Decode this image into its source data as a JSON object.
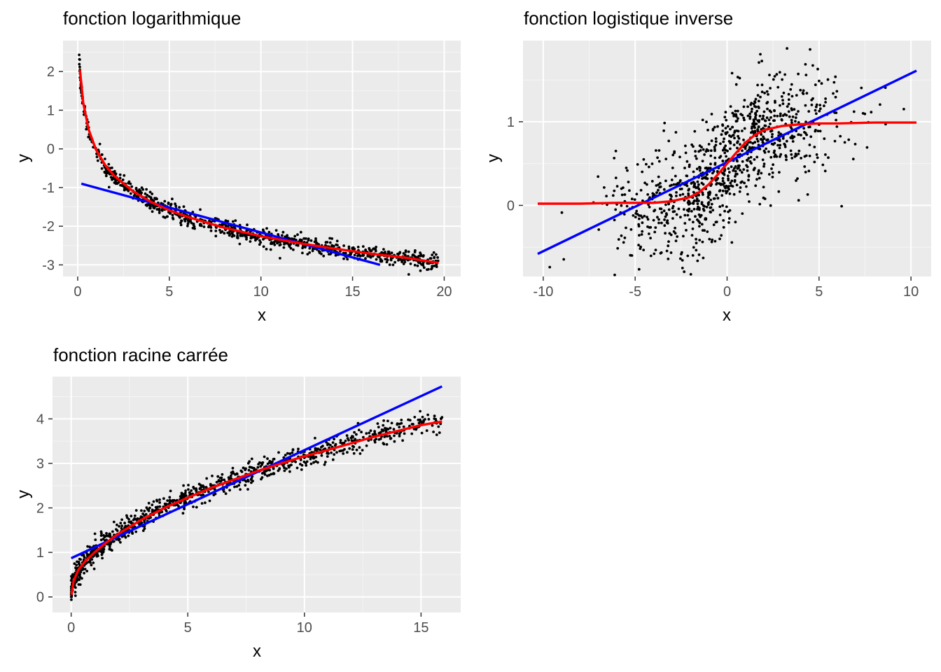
{
  "chart_data": [
    {
      "type": "scatter",
      "title": "fonction logarithmique",
      "xlabel": "x",
      "ylabel": "y",
      "xlim": [
        -0.8,
        20.9
      ],
      "ylim": [
        -3.3,
        2.8
      ],
      "xticks": [
        0,
        5,
        10,
        15,
        20
      ],
      "yticks": [
        -3,
        -2,
        -1,
        0,
        1,
        2
      ],
      "x_tick_labels": [
        "0",
        "5",
        "10",
        "15",
        "20"
      ],
      "y_tick_labels": [
        "-3",
        "-2",
        "-1",
        "0",
        "1",
        "2"
      ],
      "grid": true,
      "point_color": "#000000",
      "points_model": {
        "kind": "log",
        "a": -0.977,
        "b": -1.0,
        "noise": 0.11,
        "xmin": 0.05,
        "xmax": 19.7,
        "n": 900
      },
      "series": [
        {
          "kind": "linear fit",
          "color": "#0000ff",
          "x": [
            0.2,
            16.5
          ],
          "y": [
            -0.9,
            -3.0
          ]
        },
        {
          "kind": "log fit",
          "color": "#ff0000",
          "x": [
            0.12,
            0.3,
            0.6,
            1,
            1.5,
            2,
            3,
            4,
            5,
            6,
            8,
            10,
            12,
            14,
            16,
            18,
            19.7
          ],
          "y": [
            2.05,
            1.2,
            0.5,
            -0.02,
            -0.42,
            -0.7,
            -1.09,
            -1.37,
            -1.59,
            -1.76,
            -2.04,
            -2.26,
            -2.43,
            -2.58,
            -2.71,
            -2.82,
            -2.95
          ]
        }
      ]
    },
    {
      "type": "scatter",
      "title": "fonction logistique inverse",
      "xlabel": "x",
      "ylabel": "y",
      "xlim": [
        -11.1,
        11.1
      ],
      "ylim": [
        -0.85,
        1.97
      ],
      "xticks": [
        -10,
        -5,
        0,
        5,
        10
      ],
      "yticks": [
        0,
        1
      ],
      "x_tick_labels": [
        "-10",
        "-5",
        "0",
        "5",
        "10"
      ],
      "y_tick_labels": [
        "0",
        "1"
      ],
      "grid": true,
      "point_color": "#000000",
      "points_model": {
        "kind": "logistic",
        "slope": 1.1,
        "noise": 0.35,
        "xsd": 3.0,
        "n": 1000
      },
      "series": [
        {
          "kind": "linear fit",
          "color": "#0000ff",
          "x": [
            -10.3,
            10.3
          ],
          "y": [
            -0.58,
            1.61
          ]
        },
        {
          "kind": "logistic fit",
          "color": "#ff0000",
          "x": [
            -10.3,
            -8,
            -6,
            -5,
            -4,
            -3,
            -2,
            -1.5,
            -1,
            -0.5,
            0,
            0.5,
            1,
            1.5,
            2,
            3,
            4,
            5,
            6,
            8,
            10.3
          ],
          "y": [
            0.02,
            0.02,
            0.03,
            0.03,
            0.03,
            0.05,
            0.1,
            0.16,
            0.25,
            0.37,
            0.5,
            0.63,
            0.75,
            0.84,
            0.9,
            0.95,
            0.97,
            0.98,
            0.98,
            0.99,
            0.99
          ]
        }
      ]
    },
    {
      "type": "scatter",
      "title": "fonction racine carrée",
      "xlabel": "x",
      "ylabel": "y",
      "xlim": [
        -0.8,
        16.7
      ],
      "ylim": [
        -0.35,
        4.95
      ],
      "xticks": [
        0,
        5,
        10,
        15
      ],
      "yticks": [
        0,
        1,
        2,
        3,
        4
      ],
      "x_tick_labels": [
        "0",
        "5",
        "10",
        "15"
      ],
      "y_tick_labels": [
        "0",
        "1",
        "2",
        "3",
        "4"
      ],
      "grid": true,
      "point_color": "#000000",
      "points_model": {
        "kind": "sqrt",
        "a": 1.0,
        "noise": 0.13,
        "xmin": 0.0,
        "xmax": 15.9,
        "n": 1000
      },
      "series": [
        {
          "kind": "linear fit",
          "color": "#0000ff",
          "x": [
            0.0,
            15.9
          ],
          "y": [
            0.87,
            4.73
          ]
        },
        {
          "kind": "sqrt fit",
          "color": "#ff0000",
          "x": [
            0.02,
            0.1,
            0.3,
            0.6,
            1,
            1.5,
            2,
            3,
            4,
            5,
            6,
            7,
            8,
            9,
            10,
            11,
            12,
            13,
            14,
            15,
            15.9
          ],
          "y": [
            0.05,
            0.35,
            0.6,
            0.8,
            1.0,
            1.22,
            1.41,
            1.73,
            2.0,
            2.23,
            2.45,
            2.64,
            2.83,
            3.0,
            3.16,
            3.3,
            3.45,
            3.6,
            3.73,
            3.86,
            3.94
          ]
        }
      ]
    }
  ]
}
